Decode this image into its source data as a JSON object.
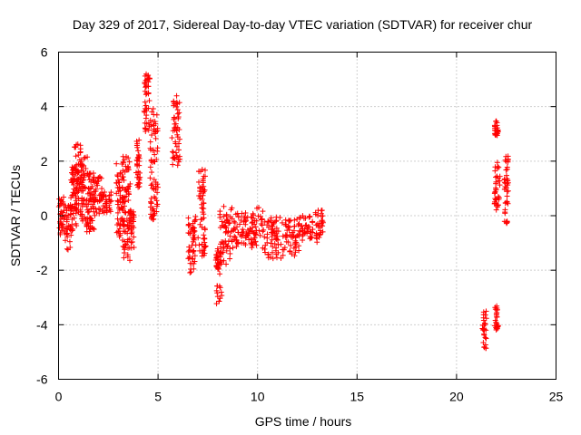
{
  "chart_data": {
    "type": "scatter",
    "title": "Day 329 of 2017, Sidereal Day-to-day VTEC variation (SDTVAR) for receiver chur",
    "xlabel": "GPS time / hours",
    "ylabel": "SDTVAR / TECUs",
    "xlim": [
      0,
      25
    ],
    "ylim": [
      -6,
      6
    ],
    "xticks": [
      0,
      5,
      10,
      15,
      20,
      25
    ],
    "yticks": [
      -6,
      -4,
      -2,
      0,
      2,
      4,
      6
    ],
    "grid": true,
    "marker": "+",
    "color": "#ff0000",
    "series": [
      {
        "name": "SDTVAR",
        "clusters": [
          {
            "x": [
              0.0,
              0.3
            ],
            "y": [
              -0.7,
              0.7
            ]
          },
          {
            "x": [
              0.3,
              0.7
            ],
            "y": [
              -1.3,
              0.5
            ]
          },
          {
            "x": [
              0.6,
              1.0
            ],
            "y": [
              -0.5,
              1.8
            ]
          },
          {
            "x": [
              0.8,
              1.2
            ],
            "y": [
              0.0,
              2.7
            ]
          },
          {
            "x": [
              1.1,
              1.6
            ],
            "y": [
              -0.3,
              2.2
            ]
          },
          {
            "x": [
              1.4,
              1.8
            ],
            "y": [
              -0.7,
              1.6
            ]
          },
          {
            "x": [
              1.7,
              2.2
            ],
            "y": [
              0.0,
              1.5
            ]
          },
          {
            "x": [
              2.1,
              2.7
            ],
            "y": [
              0.1,
              0.9
            ]
          },
          {
            "x": [
              2.9,
              3.3
            ],
            "y": [
              -1.0,
              2.0
            ]
          },
          {
            "x": [
              3.2,
              3.6
            ],
            "y": [
              -1.7,
              2.2
            ]
          },
          {
            "x": [
              3.5,
              3.8
            ],
            "y": [
              -1.2,
              0.3
            ]
          },
          {
            "x": [
              3.9,
              4.1
            ],
            "y": [
              1.0,
              2.8
            ]
          },
          {
            "x": [
              4.3,
              4.6
            ],
            "y": [
              3.0,
              5.2
            ]
          },
          {
            "x": [
              4.6,
              5.0
            ],
            "y": [
              -0.2,
              4.0
            ]
          },
          {
            "x": [
              5.7,
              6.1
            ],
            "y": [
              1.8,
              4.4
            ]
          },
          {
            "x": [
              6.5,
              6.9
            ],
            "y": [
              -2.1,
              0.3
            ]
          },
          {
            "x": [
              7.0,
              7.4
            ],
            "y": [
              -1.5,
              1.7
            ]
          },
          {
            "x": [
              7.9,
              8.2
            ],
            "y": [
              -3.3,
              -1.2
            ]
          },
          {
            "x": [
              8.1,
              8.8
            ],
            "y": [
              -1.8,
              0.4
            ]
          },
          {
            "x": [
              8.8,
              9.6
            ],
            "y": [
              -1.2,
              0.1
            ]
          },
          {
            "x": [
              9.6,
              10.3
            ],
            "y": [
              -1.2,
              0.3
            ]
          },
          {
            "x": [
              10.3,
              11.2
            ],
            "y": [
              -1.6,
              0.0
            ]
          },
          {
            "x": [
              11.2,
              12.1
            ],
            "y": [
              -1.5,
              -0.1
            ]
          },
          {
            "x": [
              12.1,
              12.8
            ],
            "y": [
              -0.9,
              0.0
            ]
          },
          {
            "x": [
              12.9,
              13.3
            ],
            "y": [
              -1.0,
              0.2
            ]
          },
          {
            "x": [
              21.3,
              21.5
            ],
            "y": [
              -4.9,
              -3.5
            ]
          },
          {
            "x": [
              21.9,
              22.1
            ],
            "y": [
              -4.2,
              -3.3
            ]
          },
          {
            "x": [
              21.9,
              22.1
            ],
            "y": [
              2.9,
              3.5
            ]
          },
          {
            "x": [
              21.9,
              22.2
            ],
            "y": [
              0.2,
              2.0
            ]
          },
          {
            "x": [
              22.4,
              22.6
            ],
            "y": [
              -0.3,
              2.2
            ]
          }
        ]
      }
    ]
  }
}
